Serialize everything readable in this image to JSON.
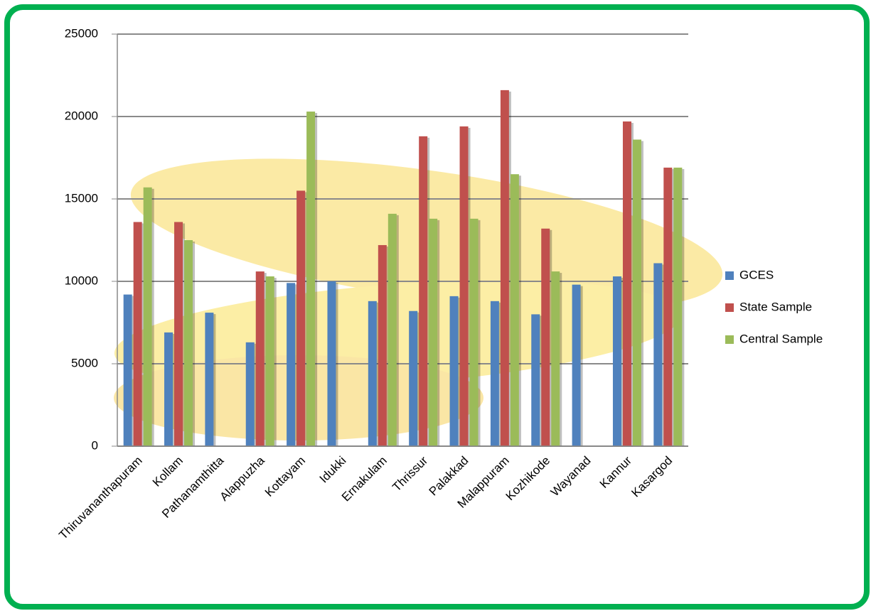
{
  "chart_data": {
    "type": "bar",
    "categories": [
      "Thiruvananthapuram",
      "Kollam",
      "Pathanamthitta",
      "Alappuzha",
      "Kottayam",
      "Idukki",
      "Ernakulam",
      "Thrissur",
      "Palakkad",
      "Malappuram",
      "Kozhikode",
      "Wayanad",
      "Kannur",
      "Kasargod"
    ],
    "series": [
      {
        "name": "GCES",
        "color": "#4f81bd",
        "values": [
          9200,
          6900,
          8100,
          6300,
          9900,
          10000,
          8800,
          8200,
          9100,
          8800,
          8000,
          9800,
          10300,
          11100
        ]
      },
      {
        "name": "State Sample",
        "color": "#c0504d",
        "values": [
          13600,
          13600,
          null,
          10600,
          15500,
          null,
          12200,
          18800,
          19400,
          21600,
          13200,
          null,
          19700,
          16900
        ]
      },
      {
        "name": "Central Sample",
        "color": "#9bbb59",
        "values": [
          15700,
          12500,
          null,
          10300,
          20300,
          null,
          14100,
          13800,
          13800,
          16500,
          10600,
          null,
          18600,
          16900
        ]
      }
    ],
    "ylim": [
      0,
      25000
    ],
    "yticks": [
      0,
      5000,
      10000,
      15000,
      20000,
      25000
    ],
    "grid": true,
    "legend": "right"
  }
}
